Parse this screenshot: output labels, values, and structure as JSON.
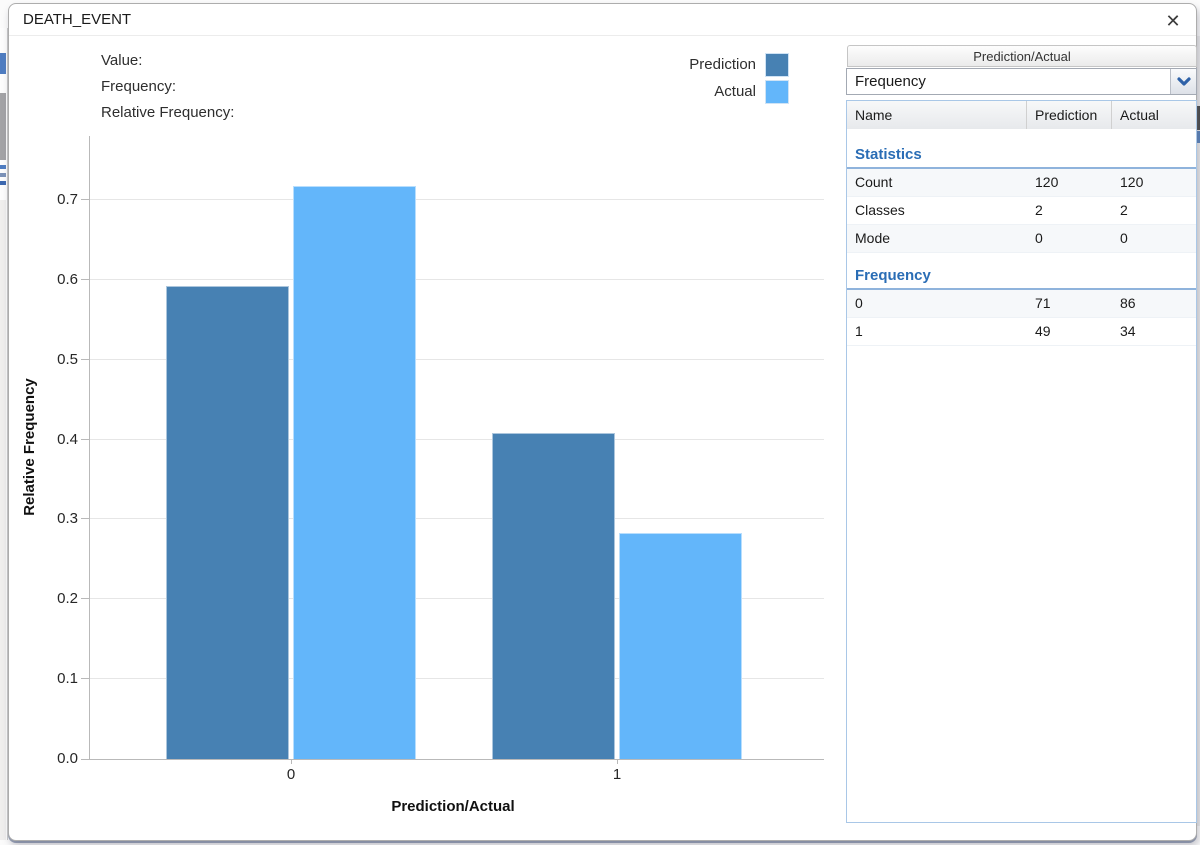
{
  "window": {
    "title": "DEATH_EVENT"
  },
  "icons": {
    "close": "✕"
  },
  "tooltip": {
    "value_label": "Value:",
    "frequency_label": "Frequency:",
    "relative_frequency_label": "Relative Frequency:"
  },
  "legend": [
    {
      "label": "Prediction",
      "color": "#4781B3"
    },
    {
      "label": "Actual",
      "color": "#63B6FA"
    }
  ],
  "chart_data": {
    "type": "bar",
    "categories": [
      "0",
      "1"
    ],
    "series": [
      {
        "name": "Prediction",
        "color": "#4781B3",
        "values": [
          0.592,
          0.408
        ]
      },
      {
        "name": "Actual",
        "color": "#63B6FA",
        "values": [
          0.717,
          0.283
        ]
      }
    ],
    "title": "",
    "xlabel": "Prediction/Actual",
    "ylabel": "Relative Frequency",
    "ylim": [
      0,
      0.78
    ],
    "yticks": [
      0,
      0.1,
      0.2,
      0.3,
      0.4,
      0.5,
      0.6,
      0.7
    ],
    "ytick_labels": [
      "0.0",
      "0.1",
      "0.2",
      "0.3",
      "0.4",
      "0.5",
      "0.6",
      "0.7"
    ],
    "grid": true,
    "legend_position": "top-right"
  },
  "panel": {
    "header": "Prediction/Actual",
    "dropdown": {
      "value": "Frequency"
    },
    "table": {
      "columns": [
        "Name",
        "Prediction",
        "Actual"
      ],
      "sections": [
        {
          "title": "Statistics",
          "rows": [
            [
              "Count",
              "120",
              "120"
            ],
            [
              "Classes",
              "2",
              "2"
            ],
            [
              "Mode",
              "0",
              "0"
            ]
          ]
        },
        {
          "title": "Frequency",
          "rows": [
            [
              "0",
              "71",
              "86"
            ],
            [
              "1",
              "49",
              "34"
            ]
          ]
        }
      ]
    }
  },
  "colors": {
    "section_header": "#2A6DB5",
    "axis": "#B9B9B9",
    "gridline": "#E6E6E6"
  }
}
